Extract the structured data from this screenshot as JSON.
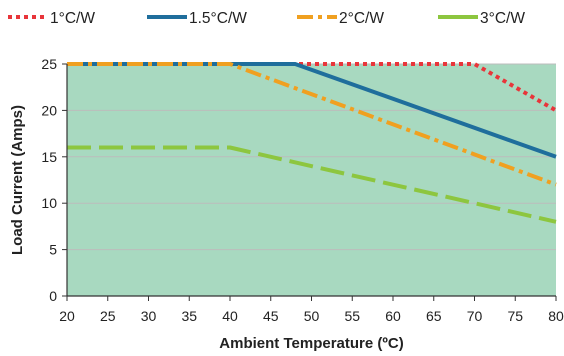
{
  "chart_data": {
    "type": "line",
    "xlabel": "Ambient Temperature (ºC)",
    "ylabel": "Load Current (Amps)",
    "xlim": [
      20,
      80
    ],
    "ylim": [
      0,
      25
    ],
    "x_ticks": [
      "20",
      "25",
      "30",
      "35",
      "40",
      "45",
      "50",
      "55",
      "60",
      "65",
      "70",
      "75",
      "80"
    ],
    "y_ticks": [
      "0",
      "5",
      "10",
      "15",
      "20",
      "25"
    ],
    "legend_position": "top",
    "fill_color": "#a8d9c0",
    "series": [
      {
        "name": "1°C/W",
        "color": "#e8353a",
        "dash": "dotted",
        "x": [
          20,
          70,
          80
        ],
        "y": [
          25,
          25,
          20
        ]
      },
      {
        "name": "1.5°C/W",
        "color": "#1f6e9c",
        "dash": "solid",
        "x": [
          20,
          48,
          80
        ],
        "y": [
          25,
          25,
          15
        ]
      },
      {
        "name": "2°C/W",
        "color": "#f0a020",
        "dash": "dashdot",
        "x": [
          20,
          40,
          80
        ],
        "y": [
          25,
          25,
          12
        ]
      },
      {
        "name": "3°C/W",
        "color": "#8dc63f",
        "dash": "dashed",
        "x": [
          20,
          40,
          80
        ],
        "y": [
          16,
          16,
          8
        ]
      }
    ]
  }
}
